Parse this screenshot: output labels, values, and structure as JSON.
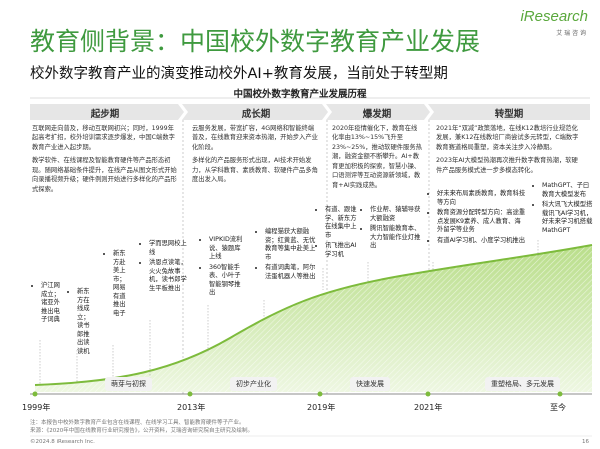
{
  "header": {
    "title": "教育侧背景：中国校外数字教育产业发展",
    "subtitle": "校外数字教育产业的演变推动校外AI+教育发展，当前处于转型期",
    "logo": "iResearch",
    "logo_sub": "艾 瑞 咨 询"
  },
  "diagram": {
    "title": "中国校外数字教育产业发展历程",
    "phases": [
      {
        "name": "起步期",
        "paragraphs": [
          "互联网走向普及，移动互联网初兴；同时，1999年起高考扩招，校外培训需求逐步爆发，中国C端数字教育产业进入起步期。",
          "教学软件、在线课程及智能教育硬件等产品形态初现。随网络基础条件提升，在线产品从图文形式开始向录播视频升级；硬件例则开始进行多样化的产品形式探索。"
        ]
      },
      {
        "name": "成长期",
        "paragraphs": [
          "云服务发展，带宽扩容，4G网络和智能终端普及，在线教育迎来资本热潮，开始步入产业化阶段。",
          "多样化的产品服务形式出现，AI技术开始发力，从学科教育、素质教育、软硬件产品多角度出发入局。"
        ]
      },
      {
        "name": "爆发期",
        "paragraphs": [
          "2020年疫情催化下，教育在线化率由13%~15%飞升至23%~25%，推动软硬件服务热潮，融资金额不断攀升。AI+教育更加积极的探索，智慧小操、口语测评等互动资源新领域，教育+AI实践成熟。"
        ]
      },
      {
        "name": "转型期",
        "paragraphs": [
          "2021年“双减”政策落地，在线K12教培行业规范化发展，兼K12在线教培厂商尝试多元转型，C端数字教育赛道格局重塑，资本关注步入冷静期。",
          "2023年AI大模型热潮再次推升数字教育热潮，软硬件产品服务模式进一步多模态转化。"
        ]
      }
    ],
    "events": [
      [
        "沪江网成立；诸亚外推出电子词典"
      ],
      [
        "新东方在线成立；读书郎推出读读机"
      ],
      [
        "新东方赴美上市；网易有道推出电子"
      ],
      [
        "学而思网校上线",
        "洪恩点读笔，火火兔故事机，读书郎学生平板推出"
      ],
      [
        "VIPKID流利说、猿题库上线",
        "360智能手表、小叶子智能钢琴推出"
      ],
      [
        "编程猫获大额融资；红黄蓝、无忧教育等集中赴美上市",
        "有道词典笔，阿尔法蛋机器人等推出"
      ],
      [
        "有道、跟谁学、新东方在线集中上市",
        "讯飞推出AI学习机"
      ],
      [
        "作业帮、猿辅导获大额融资",
        "腾讯智能教育本、大力智能作业灯推出"
      ],
      [
        "好未来布局素质教育，教育科技等方向",
        "教育资源分配转型方向：高途重点发展K9素养、成人教育、海外留学等业务",
        "有道AI学习机、小度学习机推出"
      ],
      [
        "MathGPT、子曰教育大模型发布",
        "科大讯飞大模型搭载讯飞AI学习机，好未来学习机搭载MathGPT"
      ]
    ],
    "stages": [
      "萌芽与初探",
      "初步产业化",
      "快速发展",
      "重塑格局、多元发展"
    ],
    "timeline": [
      "1999年",
      "2013年",
      "2019年",
      "2021年",
      "至今"
    ]
  },
  "footer": {
    "note": "注：本报告中校外数字教育产业包含在线课程、在线学习工具、智能教育硬件等子产业。",
    "source": "来源：《2020年中国在线教育行业研究报告》，公开资料，艾瑞咨询研究院自主研究及绘制。",
    "copyright": "©2024.8 iResearch Inc.",
    "page": "16"
  }
}
